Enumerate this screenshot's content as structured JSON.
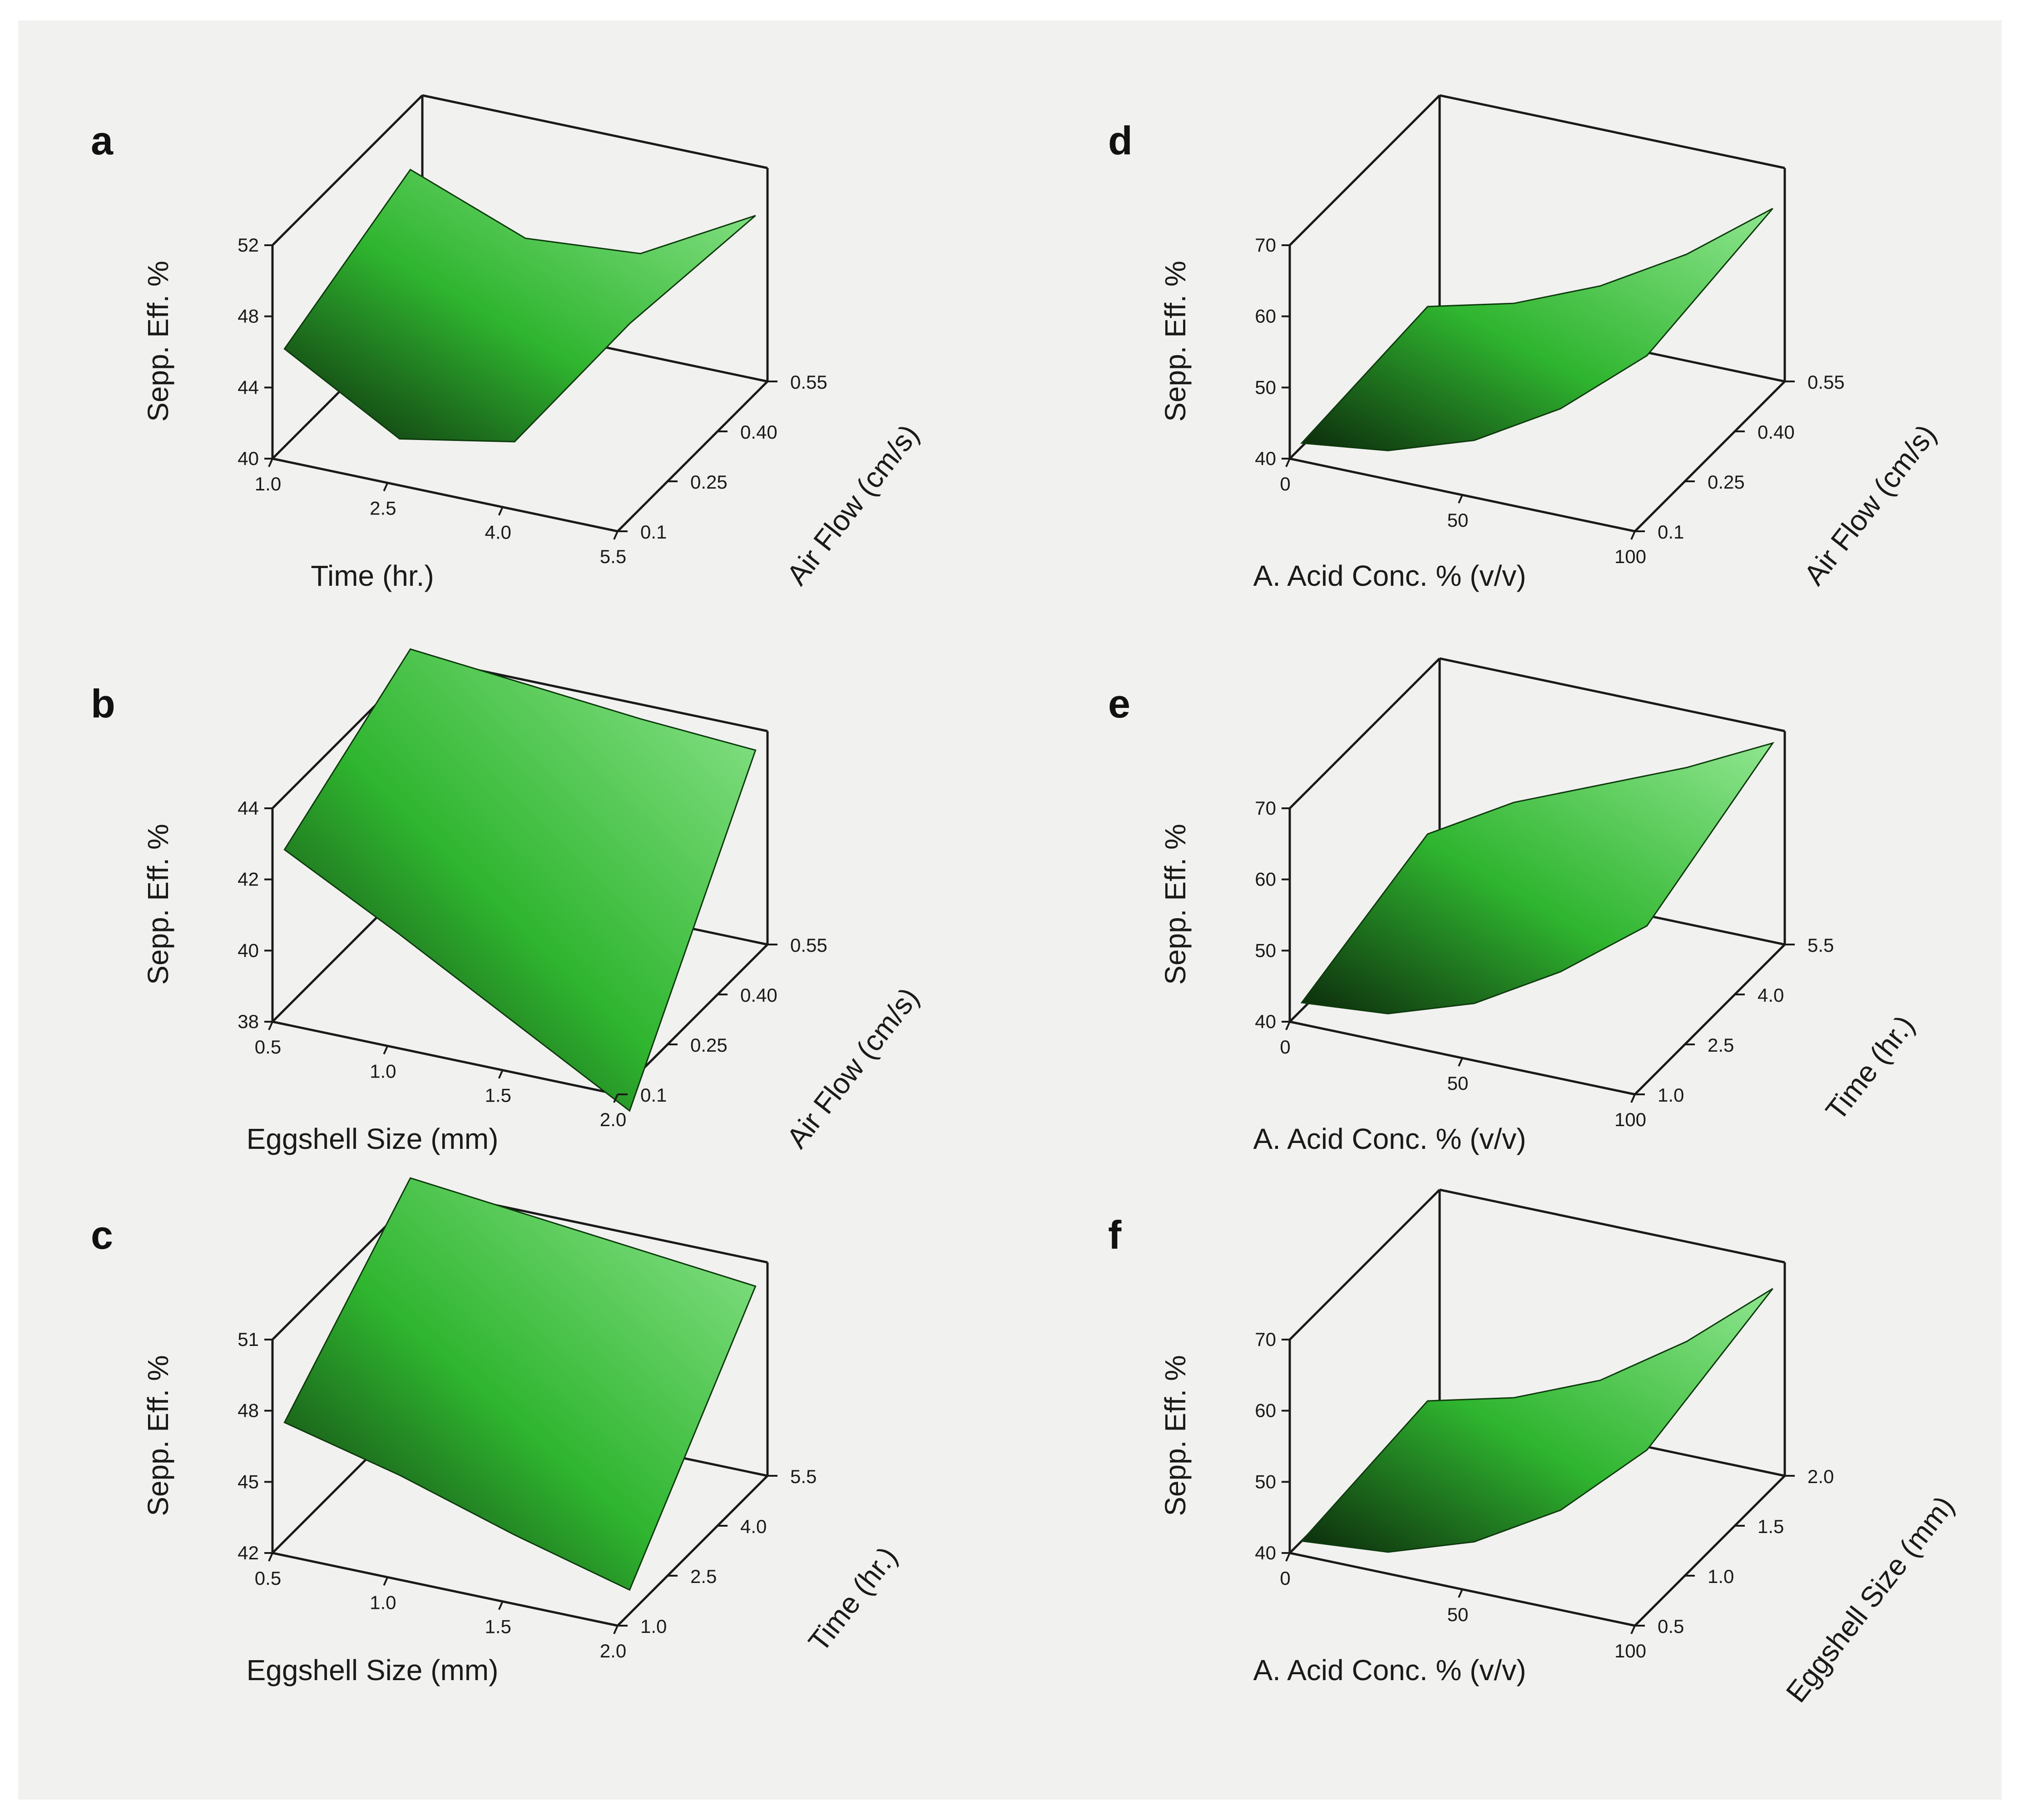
{
  "figure": {
    "background": "#f1f1ef",
    "surface_color": "#2fb52f"
  },
  "chart_data": [
    {
      "panel": "a",
      "type": "surface3d",
      "zlabel": "Sepp. Eff. %",
      "xlabel": "Time (hr.)",
      "ylabel": "Air Flow (cm/s)",
      "zticks": [
        "40",
        "44",
        "48",
        "52"
      ],
      "xticks": [
        "1.0",
        "2.5",
        "4.0",
        "5.5"
      ],
      "yticks": [
        "0.1",
        "0.25",
        "0.40",
        "0.55"
      ],
      "zlim": [
        40,
        52
      ],
      "xlim": [
        1.0,
        5.5
      ],
      "ylim": [
        0.1,
        0.55
      ],
      "front_edge": {
        "x": [
          1.0,
          2.5,
          4.0,
          5.5
        ],
        "z": [
          45.5,
          41.8,
          43.0,
          51.0
        ]
      },
      "back_edge": {
        "x": [
          1.0,
          2.5,
          4.0,
          5.5
        ],
        "z": [
          48.5,
          46.0,
          46.5,
          50.0
        ]
      }
    },
    {
      "panel": "b",
      "type": "surface3d",
      "zlabel": "Sepp. Eff. %",
      "xlabel": "Eggshell Size (mm)",
      "ylabel": "Air Flow (cm/s)",
      "zticks": [
        "38",
        "40",
        "42",
        "44"
      ],
      "xticks": [
        "0.5",
        "1.0",
        "1.5",
        "2.0"
      ],
      "yticks": [
        "0.1",
        "0.25",
        "0.40",
        "0.55"
      ],
      "zlim": [
        38,
        44
      ],
      "xlim": [
        0.5,
        2.0
      ],
      "ylim": [
        0.1,
        0.55
      ],
      "front_edge": {
        "x": [
          0.5,
          1.0,
          1.5,
          2.0
        ],
        "z": [
          42.5,
          40.8,
          39.0,
          37.2
        ]
      },
      "back_edge": {
        "x": [
          0.5,
          1.0,
          1.5,
          2.0
        ],
        "z": [
          44.6,
          44.3,
          44.0,
          43.8
        ]
      }
    },
    {
      "panel": "c",
      "type": "surface3d",
      "zlabel": "Sepp. Eff. %",
      "xlabel": "Eggshell Size (mm)",
      "ylabel": "Time (hr.)",
      "zticks": [
        "42",
        "45",
        "48",
        "51"
      ],
      "xticks": [
        "0.5",
        "1.0",
        "1.5",
        "2.0"
      ],
      "yticks": [
        "1.0",
        "2.5",
        "4.0",
        "5.5"
      ],
      "zlim": [
        42,
        51
      ],
      "xlim": [
        0.5,
        2.0
      ],
      "ylim": [
        1.0,
        5.5
      ],
      "front_edge": {
        "x": [
          0.5,
          1.0,
          1.5,
          2.0
        ],
        "z": [
          47.0,
          45.8,
          44.3,
          43.0
        ]
      },
      "back_edge": {
        "x": [
          0.5,
          1.0,
          1.5,
          2.0
        ],
        "z": [
          52.0,
          51.5,
          51.0,
          50.5
        ]
      }
    },
    {
      "panel": "d",
      "type": "surface3d",
      "zlabel": "Sepp. Eff. %",
      "xlabel": "A. Acid Conc. %  (v/v)",
      "ylabel": "Air Flow (cm/s)",
      "zticks": [
        "40",
        "50",
        "60",
        "70"
      ],
      "xticks": [
        "0",
        "50",
        "100"
      ],
      "yticks": [
        "0.1",
        "0.25",
        "0.40",
        "0.55"
      ],
      "zlim": [
        40,
        70
      ],
      "xlim": [
        0,
        100
      ],
      "ylim": [
        0.1,
        0.55
      ],
      "front_edge": {
        "x": [
          0,
          25,
          50,
          75,
          100
        ],
        "z": [
          40.5,
          42.0,
          46.0,
          53.0,
          63.0
        ]
      },
      "back_edge": {
        "x": [
          0,
          25,
          50,
          75,
          100
        ],
        "z": [
          42.0,
          45.0,
          50.0,
          57.0,
          66.0
        ]
      }
    },
    {
      "panel": "e",
      "type": "surface3d",
      "zlabel": "Sepp. Eff. %",
      "xlabel": "A. Acid Conc. %  (v/v)",
      "ylabel": "Time (hr.)",
      "zticks": [
        "40",
        "50",
        "60",
        "70"
      ],
      "xticks": [
        "0",
        "50",
        "100"
      ],
      "yticks": [
        "1.0",
        "2.5",
        "4.0",
        "5.5"
      ],
      "zlim": [
        40,
        70
      ],
      "xlim": [
        0,
        100
      ],
      "ylim": [
        1.0,
        5.5
      ],
      "front_edge": {
        "x": [
          0,
          25,
          50,
          75,
          100
        ],
        "z": [
          41.0,
          42.0,
          46.0,
          53.0,
          62.0
        ]
      },
      "back_edge": {
        "x": [
          0,
          25,
          50,
          75,
          100
        ],
        "z": [
          47.0,
          54.0,
          59.0,
          64.0,
          70.0
        ]
      }
    },
    {
      "panel": "f",
      "type": "surface3d",
      "zlabel": "Sepp. Eff. %",
      "xlabel": "A. Acid Conc. %  (v/v)",
      "ylabel": "Eggshell Size (mm)",
      "zticks": [
        "40",
        "50",
        "60",
        "70"
      ],
      "xticks": [
        "0",
        "50",
        "100"
      ],
      "yticks": [
        "0.5",
        "1.0",
        "1.5",
        "2.0"
      ],
      "zlim": [
        40,
        70
      ],
      "xlim": [
        0,
        100
      ],
      "ylim": [
        0.5,
        2.0
      ],
      "front_edge": {
        "x": [
          0,
          25,
          50,
          75,
          100
        ],
        "z": [
          40.0,
          41.0,
          45.0,
          52.0,
          63.0
        ]
      },
      "back_edge": {
        "x": [
          0,
          25,
          50,
          75,
          100
        ],
        "z": [
          42.0,
          45.0,
          50.0,
          58.0,
          68.0
        ]
      }
    }
  ]
}
